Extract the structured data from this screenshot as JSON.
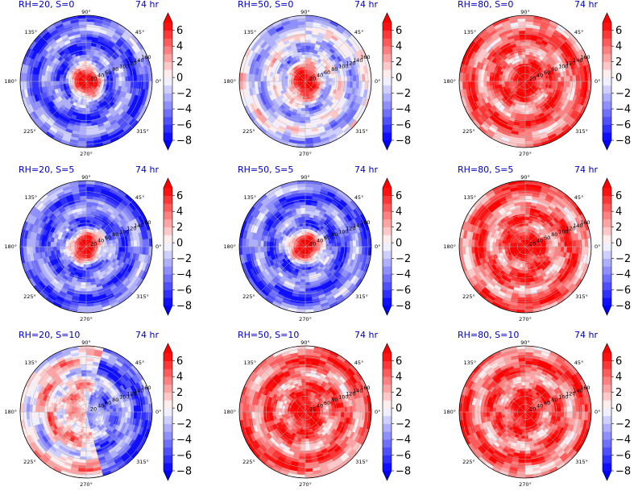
{
  "colors": {
    "title": "#0000cc",
    "positive": "#ff0000",
    "negative": "#0000ff",
    "neutral": "#ffffff"
  },
  "polar_axes": {
    "angle_labels": [
      "0°",
      "45°",
      "90°",
      "135°",
      "180°",
      "225°",
      "270°",
      "315°"
    ],
    "radial_labels": [
      "20",
      "40",
      "60",
      "80",
      "100",
      "120",
      "140",
      "160"
    ]
  },
  "colorbar": {
    "tick_labels": [
      "6",
      "4",
      "2",
      "0",
      "−2",
      "−4",
      "−6",
      "−8"
    ],
    "levels": [
      -8,
      -7,
      -6,
      -5,
      -4,
      -3,
      -2,
      -1,
      0,
      1,
      2,
      3,
      4,
      5,
      6,
      7
    ],
    "extend": "both"
  },
  "chart_data": [
    {
      "type": "heatmap",
      "projection": "polar",
      "title": "RH=20, S=0",
      "time_label": "74 hr",
      "core_sign": "positive",
      "outer_sign": "negative",
      "color_range": [
        -8,
        7
      ]
    },
    {
      "type": "heatmap",
      "projection": "polar",
      "title": "RH=50, S=0",
      "time_label": "74 hr",
      "core_sign": "positive",
      "outer_sign": "mixed",
      "color_range": [
        -8,
        7
      ]
    },
    {
      "type": "heatmap",
      "projection": "polar",
      "title": "RH=80, S=0",
      "time_label": "74 hr",
      "core_sign": "positive",
      "outer_sign": "positive",
      "color_range": [
        -8,
        7
      ]
    },
    {
      "type": "heatmap",
      "projection": "polar",
      "title": "RH=20, S=5",
      "time_label": "74 hr",
      "core_sign": "positive",
      "outer_sign": "negative",
      "color_range": [
        -8,
        7
      ]
    },
    {
      "type": "heatmap",
      "projection": "polar",
      "title": "RH=50, S=5",
      "time_label": "74 hr",
      "core_sign": "positive",
      "outer_sign": "negative",
      "color_range": [
        -8,
        7
      ]
    },
    {
      "type": "heatmap",
      "projection": "polar",
      "title": "RH=80, S=5",
      "time_label": "74 hr",
      "core_sign": "positive",
      "outer_sign": "positive",
      "color_range": [
        -8,
        7
      ]
    },
    {
      "type": "heatmap",
      "projection": "polar",
      "title": "RH=20, S=10",
      "time_label": "74 hr",
      "core_sign": "mixed",
      "outer_sign": "negative east, light west",
      "color_range": [
        -8,
        7
      ]
    },
    {
      "type": "heatmap",
      "projection": "polar",
      "title": "RH=50, S=10",
      "time_label": "74 hr",
      "core_sign": "positive",
      "outer_sign": "positive",
      "color_range": [
        -8,
        7
      ]
    },
    {
      "type": "heatmap",
      "projection": "polar",
      "title": "RH=80, S=10",
      "time_label": "74 hr",
      "core_sign": "positive",
      "outer_sign": "positive",
      "color_range": [
        -8,
        7
      ]
    }
  ]
}
